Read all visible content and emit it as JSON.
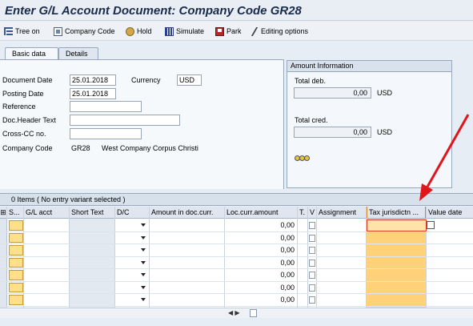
{
  "window": {
    "title": "Enter G/L Account Document: Company Code GR28"
  },
  "toolbar": {
    "tree_on": "Tree on",
    "company_code": "Company Code",
    "hold": "Hold",
    "simulate": "Simulate",
    "park": "Park",
    "editing_options": "Editing options"
  },
  "tabs": {
    "basic_data": "Basic data",
    "details": "Details"
  },
  "form": {
    "document_date": {
      "label": "Document Date",
      "value": "25.01.2018"
    },
    "currency": {
      "label": "Currency",
      "value": "USD"
    },
    "posting_date": {
      "label": "Posting Date",
      "value": "25.01.2018"
    },
    "reference": {
      "label": "Reference",
      "value": ""
    },
    "doc_header_text": {
      "label": "Doc.Header Text",
      "value": ""
    },
    "cross_cc": {
      "label": "Cross-CC no.",
      "value": ""
    },
    "company_code": {
      "label": "Company Code",
      "code": "GR28",
      "name": "West Company Corpus Christi"
    }
  },
  "amount_info": {
    "header": "Amount Information",
    "total_debit_label": "Total deb.",
    "total_debit_value": "0,00",
    "total_debit_currency": "USD",
    "total_credit_label": "Total cred.",
    "total_credit_value": "0,00",
    "total_credit_currency": "USD"
  },
  "items": {
    "summary": "0 Items ( No entry variant selected )",
    "columns": {
      "status": "S...",
      "gl_acct": "G/L acct",
      "short_text": "Short Text",
      "dc": "D/C",
      "amount_doc": "Amount in doc.curr.",
      "loc_amount": "Loc.curr.amount",
      "t": "T.",
      "v": "V",
      "assignment": "Assignment",
      "tax_jurisdiction": "Tax jurisdictn ...",
      "value_date": "Value date"
    },
    "rows": [
      {
        "loc_amount": "0,00"
      },
      {
        "loc_amount": "0,00"
      },
      {
        "loc_amount": "0,00"
      },
      {
        "loc_amount": "0,00"
      },
      {
        "loc_amount": "0,00"
      },
      {
        "loc_amount": "0,00"
      },
      {
        "loc_amount": "0,00"
      }
    ]
  },
  "colors": {
    "highlight_column": "#ffd27a",
    "annotation_arrow": "#e0161b",
    "row_selector": "#ffe08a"
  }
}
